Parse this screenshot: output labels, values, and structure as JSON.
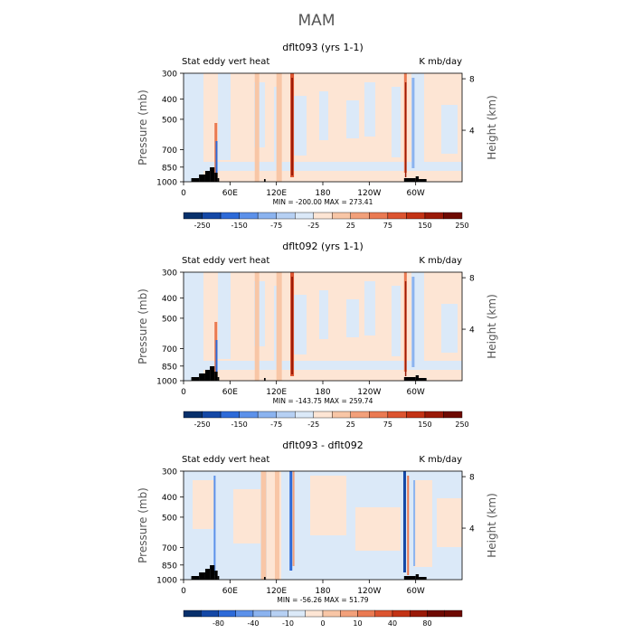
{
  "page_title": "MAM",
  "colors": {
    "neg": [
      "#08306b",
      "#1448a6",
      "#2d6ad8",
      "#5c91ea",
      "#8bb3ef",
      "#b6d0f3",
      "#dbe9f8"
    ],
    "pos": [
      "#fde5d4",
      "#f8c6a6",
      "#f2a07a",
      "#ea7a52",
      "#dc5430",
      "#c33315",
      "#9a1a08",
      "#6e0a02"
    ],
    "land": "#000000"
  },
  "chart_data": [
    {
      "type": "heatmap",
      "title": "dflt093 (yrs 1-1)",
      "left_label": "Stat eddy vert heat",
      "right_label": "K mb/day",
      "ylabel": "Pressure (mb)",
      "ylabel_right": "Height (km)",
      "xticks": [
        "0",
        "60E",
        "120E",
        "180",
        "120W",
        "60W"
      ],
      "xtick_lon": [
        0,
        60,
        120,
        180,
        240,
        300
      ],
      "yticks": [
        "300",
        "400",
        "500",
        "700",
        "850",
        "1000"
      ],
      "ytick_p": [
        300,
        400,
        500,
        700,
        850,
        1000
      ],
      "rticks": [
        "8",
        "4"
      ],
      "rtick_km": [
        8,
        4
      ],
      "ylim": [
        1000,
        300
      ],
      "xlim": [
        0,
        360
      ],
      "stats": "MIN = -200.00   MAX = 273.41",
      "min": -200.0,
      "max": 273.41,
      "colorbar_labels": [
        "-250",
        "-150",
        "-75",
        "-25",
        "25",
        "75",
        "150",
        "250"
      ],
      "background_class": "pos0"
    },
    {
      "type": "heatmap",
      "title": "dflt092 (yrs 1-1)",
      "left_label": "Stat eddy vert heat",
      "right_label": "K mb/day",
      "ylabel": "Pressure (mb)",
      "ylabel_right": "Height (km)",
      "xticks": [
        "0",
        "60E",
        "120E",
        "180",
        "120W",
        "60W"
      ],
      "xtick_lon": [
        0,
        60,
        120,
        180,
        240,
        300
      ],
      "yticks": [
        "300",
        "400",
        "500",
        "700",
        "850",
        "1000"
      ],
      "ytick_p": [
        300,
        400,
        500,
        700,
        850,
        1000
      ],
      "rticks": [
        "8",
        "4"
      ],
      "rtick_km": [
        8,
        4
      ],
      "ylim": [
        1000,
        300
      ],
      "xlim": [
        0,
        360
      ],
      "stats": "MIN = -143.75   MAX = 259.74",
      "min": -143.75,
      "max": 259.74,
      "colorbar_labels": [
        "-250",
        "-150",
        "-75",
        "-25",
        "25",
        "75",
        "150",
        "250"
      ],
      "background_class": "pos0"
    },
    {
      "type": "heatmap",
      "title": "dflt093 - dflt092",
      "left_label": "Stat eddy vert heat",
      "right_label": "K mb/day",
      "ylabel": "Pressure (mb)",
      "ylabel_right": "Height (km)",
      "xticks": [
        "0",
        "60E",
        "120E",
        "180",
        "120W",
        "60W"
      ],
      "xtick_lon": [
        0,
        60,
        120,
        180,
        240,
        300
      ],
      "yticks": [
        "300",
        "400",
        "500",
        "700",
        "850",
        "1000"
      ],
      "ytick_p": [
        300,
        400,
        500,
        700,
        850,
        1000
      ],
      "rticks": [
        "8",
        "4"
      ],
      "rtick_km": [
        8,
        4
      ],
      "ylim": [
        1000,
        300
      ],
      "xlim": [
        0,
        360
      ],
      "stats": "MIN = -56.26   MAX =  51.79",
      "min": -56.26,
      "max": 51.79,
      "colorbar_labels": [
        "-80",
        "-40",
        "-10",
        "0",
        "10",
        "40",
        "80"
      ],
      "background_class": "mixed"
    }
  ]
}
